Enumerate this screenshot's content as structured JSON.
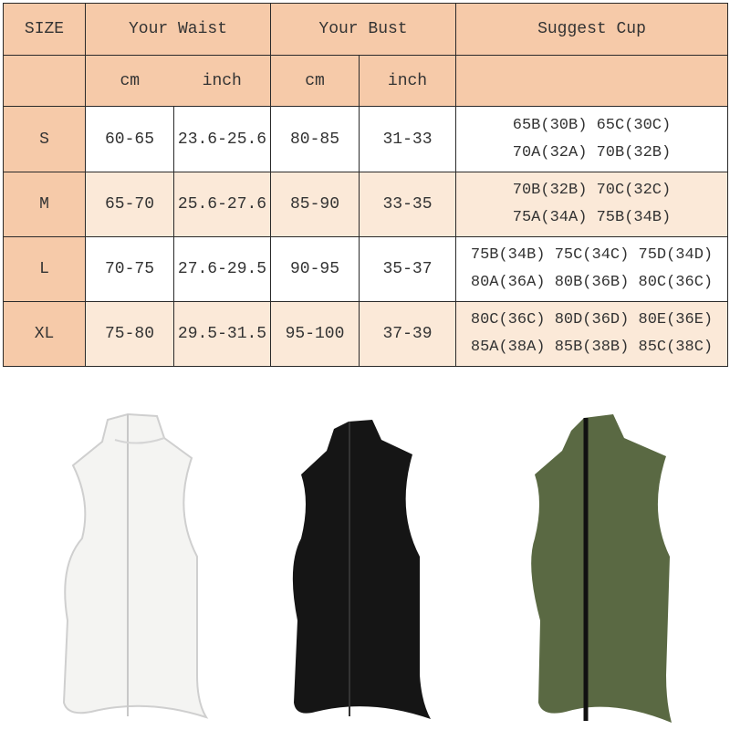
{
  "table": {
    "headers": {
      "size": "SIZE",
      "waist": "Your Waist",
      "bust": "Your Bust",
      "cup": "Suggest Cup"
    },
    "units": {
      "waist_cm": "cm",
      "waist_inch": "inch",
      "bust_cm": "cm",
      "bust_inch": "inch"
    },
    "rows": [
      {
        "size": "S",
        "waist_cm": "60-65",
        "waist_inch": "23.6-25.6",
        "bust_cm": "80-85",
        "bust_inch": "31-33",
        "cup_line1": "65B(30B) 65C(30C)",
        "cup_line2": "70A(32A) 70B(32B)"
      },
      {
        "size": "M",
        "waist_cm": "65-70",
        "waist_inch": "25.6-27.6",
        "bust_cm": "85-90",
        "bust_inch": "33-35",
        "cup_line1": "70B(32B) 70C(32C)",
        "cup_line2": "75A(34A) 75B(34B)"
      },
      {
        "size": "L",
        "waist_cm": "70-75",
        "waist_inch": "27.6-29.5",
        "bust_cm": "90-95",
        "bust_inch": "35-37",
        "cup_line1": "75B(34B) 75C(34C) 75D(34D)",
        "cup_line2": "80A(36A) 80B(36B) 80C(36C)"
      },
      {
        "size": "XL",
        "waist_cm": "75-80",
        "waist_inch": "29.5-31.5",
        "bust_cm": "95-100",
        "bust_inch": "37-39",
        "cup_line1": "80C(36C) 80D(36D) 80E(36E)",
        "cup_line2": "85A(38A) 85B(38B) 85C(38C)"
      }
    ]
  },
  "colors": {
    "header": "#f6caa9",
    "alt_row": "#fbe9d8",
    "vest_white": "#f4f4f2",
    "vest_black": "#151515",
    "vest_green": "#5a6943"
  },
  "products": [
    {
      "color": "white",
      "icon": "white-zip-vest"
    },
    {
      "color": "black",
      "icon": "black-zip-vest"
    },
    {
      "color": "army-green",
      "icon": "green-zip-vest"
    }
  ]
}
